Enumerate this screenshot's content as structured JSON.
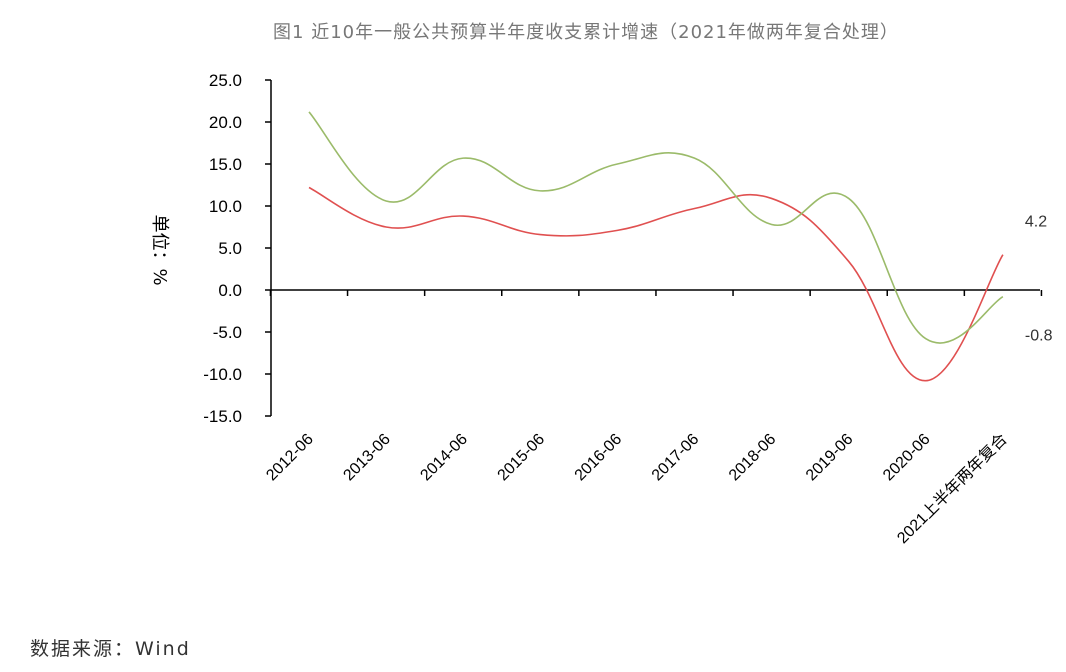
{
  "chart_data": {
    "type": "line",
    "title": "图1 近10年一般公共预算半年度收支累计增速（2021年做两年复合处理）",
    "ylabel": "单位：%",
    "categories": [
      "2012-06",
      "2013-06",
      "2014-06",
      "2015-06",
      "2016-06",
      "2017-06",
      "2018-06",
      "2019-06",
      "2020-06",
      "2021上半年两年复合"
    ],
    "yticks": [
      "25.0",
      "20.0",
      "15.0",
      "10.0",
      "5.0",
      "0.0",
      "-5.0",
      "-10.0",
      "-15.0"
    ],
    "ylim": [
      -15,
      25
    ],
    "series": [
      {
        "values": [
          12.2,
          7.5,
          8.8,
          6.6,
          7.1,
          9.7,
          10.9,
          3.4,
          -10.8,
          4.2
        ],
        "color": "#e05050"
      },
      {
        "values": [
          21.2,
          10.6,
          15.7,
          11.8,
          15.0,
          15.7,
          7.8,
          10.9,
          -5.8,
          -0.8
        ],
        "color": "#9bbb6a"
      }
    ],
    "end_labels": [
      "4.2",
      "-0.8"
    ],
    "grid": false,
    "legend": "none"
  },
  "source": "数据来源：Wind"
}
